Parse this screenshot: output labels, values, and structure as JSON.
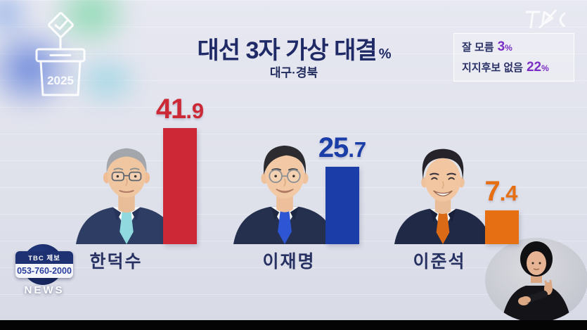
{
  "brand": {
    "logo_text": "TBC"
  },
  "header": {
    "title": "대선 3자 가상 대결",
    "unit": "%",
    "region": "대구·경북"
  },
  "side_note": {
    "rows": [
      {
        "label": "잘 모름",
        "value": "3",
        "unit": "%"
      },
      {
        "label": "지지후보 없음",
        "value": "22",
        "unit": "%"
      }
    ],
    "accent_color": "#7b2fc4"
  },
  "watermark": {
    "year": "2025"
  },
  "chart_data": {
    "type": "bar",
    "title": "대선 3자 가상 대결",
    "subtitle": "대구·경북",
    "unit": "%",
    "categories": [
      "한덕수",
      "이재명",
      "이준석"
    ],
    "values": [
      41.9,
      25.7,
      7.4
    ],
    "candidates": [
      {
        "name": "한덕수",
        "value": 41.9,
        "color": "#cc2836"
      },
      {
        "name": "이재명",
        "value": 25.7,
        "color": "#1a3da8"
      },
      {
        "name": "이준석",
        "value": 7.4,
        "color": "#e56f12"
      }
    ],
    "annotations": [
      {
        "label": "잘 모름",
        "value": 3,
        "unit": "%"
      },
      {
        "label": "지지후보 없음",
        "value": 22,
        "unit": "%"
      }
    ],
    "ylim": [
      0,
      50
    ],
    "legend": false,
    "grid": "faint-horizontal-lines"
  },
  "footer": {
    "tip_label": "TBC 제보",
    "phone": "053-760-2000",
    "news": "NEWS"
  }
}
